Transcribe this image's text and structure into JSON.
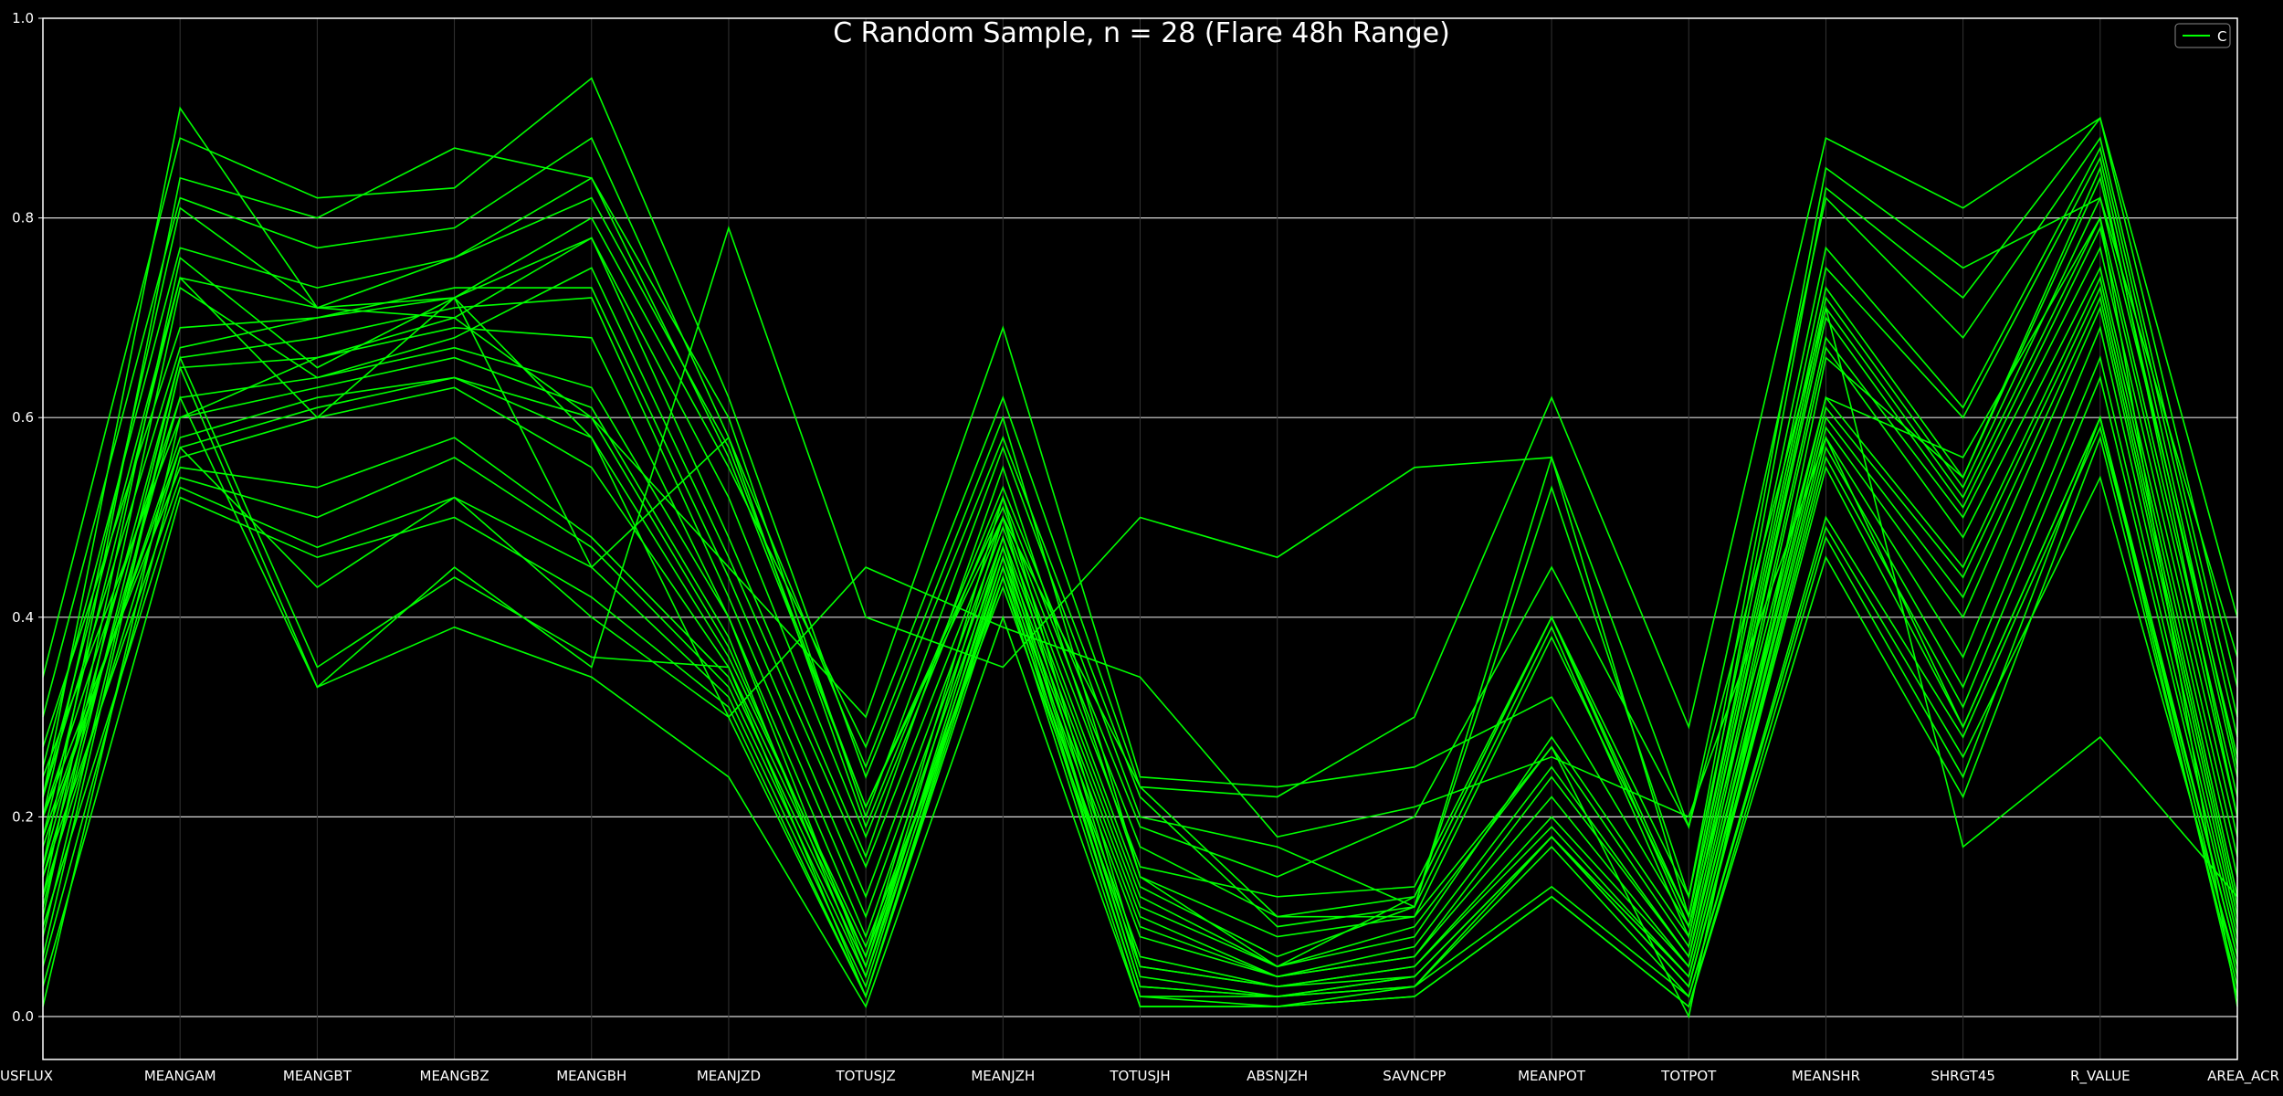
{
  "chart_data": {
    "type": "line",
    "title": "C Random Sample, n = 28 (Flare 48h Range)",
    "categories": [
      "USFLUX",
      "MEANGAM",
      "MEANGBT",
      "MEANGBZ",
      "MEANGBH",
      "MEANJZD",
      "TOTUSJZ",
      "MEANJZH",
      "TOTUSJH",
      "ABSNJZH",
      "SAVNCPP",
      "MEANPOT",
      "TOTPOT",
      "MEANSHR",
      "SHRGT45",
      "R_VALUE",
      "AREA_ACR"
    ],
    "ylim": [
      0.0,
      1.0
    ],
    "yticks": [
      "0.0",
      "0.2",
      "0.4",
      "0.6",
      "0.8",
      "1.0"
    ],
    "grid": "horizontal",
    "legend": {
      "position": "top-right",
      "entries": [
        "C"
      ]
    },
    "colors": {
      "series": "#00ff00",
      "background": "#000000",
      "grid": "#ffffff",
      "axis": "#ffffff"
    },
    "series": [
      {
        "name": "C",
        "values": [
          0.22,
          0.91,
          0.71,
          0.72,
          0.8,
          0.55,
          0.27,
          0.62,
          0.23,
          0.22,
          0.3,
          0.62,
          0.29,
          0.88,
          0.81,
          0.9,
          0.4
        ]
      },
      {
        "name": "C",
        "values": [
          0.34,
          0.88,
          0.82,
          0.83,
          0.94,
          0.62,
          0.24,
          0.58,
          0.22,
          0.09,
          0.11,
          0.53,
          0.12,
          0.85,
          0.75,
          0.82,
          0.36
        ]
      },
      {
        "name": "C",
        "values": [
          0.15,
          0.84,
          0.8,
          0.87,
          0.84,
          0.6,
          0.2,
          0.57,
          0.2,
          0.17,
          0.11,
          0.56,
          0.1,
          0.83,
          0.72,
          0.9,
          0.33
        ]
      },
      {
        "name": "C",
        "values": [
          0.3,
          0.82,
          0.77,
          0.79,
          0.88,
          0.58,
          0.19,
          0.53,
          0.19,
          0.14,
          0.2,
          0.45,
          0.19,
          0.82,
          0.68,
          0.88,
          0.3
        ]
      },
      {
        "name": "C",
        "values": [
          0.2,
          0.81,
          0.71,
          0.76,
          0.82,
          0.57,
          0.21,
          0.51,
          0.15,
          0.12,
          0.13,
          0.4,
          0.12,
          0.77,
          0.61,
          0.87,
          0.28
        ]
      },
      {
        "name": "C",
        "values": [
          0.25,
          0.77,
          0.73,
          0.76,
          0.84,
          0.56,
          0.21,
          0.5,
          0.23,
          0.1,
          0.12,
          0.4,
          0.1,
          0.75,
          0.6,
          0.86,
          0.25
        ]
      },
      {
        "name": "C",
        "values": [
          0.12,
          0.76,
          0.65,
          0.72,
          0.78,
          0.52,
          0.18,
          0.52,
          0.17,
          0.1,
          0.1,
          0.38,
          0.1,
          0.73,
          0.54,
          0.84,
          0.24
        ]
      },
      {
        "name": "C",
        "values": [
          0.18,
          0.74,
          0.71,
          0.7,
          0.78,
          0.48,
          0.16,
          0.55,
          0.14,
          0.05,
          0.12,
          0.4,
          0.09,
          0.72,
          0.53,
          0.82,
          0.26
        ]
      },
      {
        "name": "C",
        "values": [
          0.1,
          0.73,
          0.64,
          0.68,
          0.75,
          0.46,
          0.15,
          0.5,
          0.13,
          0.06,
          0.11,
          0.39,
          0.08,
          0.71,
          0.52,
          0.8,
          0.22
        ]
      },
      {
        "name": "C",
        "values": [
          0.22,
          0.67,
          0.7,
          0.73,
          0.73,
          0.44,
          0.12,
          0.49,
          0.12,
          0.05,
          0.08,
          0.28,
          0.08,
          0.7,
          0.51,
          0.79,
          0.2
        ]
      },
      {
        "name": "C",
        "values": [
          0.15,
          0.66,
          0.68,
          0.71,
          0.72,
          0.42,
          0.1,
          0.48,
          0.11,
          0.05,
          0.09,
          0.27,
          0.07,
          0.68,
          0.5,
          0.77,
          0.18
        ]
      },
      {
        "name": "C",
        "values": [
          0.08,
          0.65,
          0.66,
          0.69,
          0.68,
          0.4,
          0.08,
          0.47,
          0.1,
          0.04,
          0.07,
          0.25,
          0.06,
          0.67,
          0.48,
          0.75,
          0.16
        ]
      },
      {
        "name": "C",
        "values": [
          0.2,
          0.62,
          0.64,
          0.67,
          0.63,
          0.4,
          0.05,
          0.46,
          0.09,
          0.04,
          0.06,
          0.24,
          0.06,
          0.62,
          0.45,
          0.74,
          0.14
        ]
      },
      {
        "name": "C",
        "values": [
          0.24,
          0.6,
          0.63,
          0.66,
          0.61,
          0.38,
          0.04,
          0.45,
          0.08,
          0.04,
          0.06,
          0.22,
          0.05,
          0.61,
          0.44,
          0.73,
          0.12
        ]
      },
      {
        "name": "C",
        "values": [
          0.17,
          0.58,
          0.62,
          0.64,
          0.6,
          0.37,
          0.06,
          0.44,
          0.06,
          0.03,
          0.05,
          0.2,
          0.05,
          0.6,
          0.42,
          0.72,
          0.11
        ]
      },
      {
        "name": "C",
        "values": [
          0.12,
          0.57,
          0.61,
          0.64,
          0.58,
          0.36,
          0.07,
          0.43,
          0.05,
          0.03,
          0.05,
          0.19,
          0.04,
          0.59,
          0.4,
          0.71,
          0.1
        ]
      },
      {
        "name": "C",
        "values": [
          0.05,
          0.56,
          0.6,
          0.63,
          0.55,
          0.35,
          0.06,
          0.52,
          0.05,
          0.03,
          0.04,
          0.18,
          0.04,
          0.58,
          0.36,
          0.69,
          0.09
        ]
      },
      {
        "name": "C",
        "values": [
          0.2,
          0.55,
          0.53,
          0.58,
          0.48,
          0.34,
          0.05,
          0.5,
          0.04,
          0.02,
          0.04,
          0.18,
          0.03,
          0.57,
          0.33,
          0.66,
          0.08
        ]
      },
      {
        "name": "C",
        "values": [
          0.14,
          0.54,
          0.5,
          0.56,
          0.47,
          0.33,
          0.04,
          0.48,
          0.03,
          0.02,
          0.04,
          0.18,
          0.03,
          0.56,
          0.31,
          0.64,
          0.07
        ]
      },
      {
        "name": "C",
        "values": [
          0.09,
          0.53,
          0.47,
          0.52,
          0.45,
          0.32,
          0.03,
          0.47,
          0.03,
          0.02,
          0.03,
          0.18,
          0.03,
          0.55,
          0.29,
          0.6,
          0.06
        ]
      },
      {
        "name": "C",
        "values": [
          0.03,
          0.52,
          0.46,
          0.5,
          0.42,
          0.31,
          0.02,
          0.46,
          0.02,
          0.02,
          0.03,
          0.17,
          0.02,
          0.5,
          0.28,
          0.59,
          0.06
        ]
      },
      {
        "name": "C",
        "values": [
          0.18,
          0.57,
          0.43,
          0.52,
          0.4,
          0.3,
          0.02,
          0.45,
          0.02,
          0.01,
          0.03,
          0.13,
          0.02,
          0.49,
          0.26,
          0.54,
          0.05
        ]
      },
      {
        "name": "C",
        "values": [
          0.11,
          0.66,
          0.35,
          0.44,
          0.36,
          0.35,
          0.02,
          0.44,
          0.01,
          0.01,
          0.02,
          0.12,
          0.01,
          0.48,
          0.24,
          0.6,
          0.04
        ]
      },
      {
        "name": "C",
        "values": [
          0.06,
          0.65,
          0.33,
          0.39,
          0.34,
          0.24,
          0.01,
          0.4,
          0.01,
          0.01,
          0.02,
          0.12,
          0.01,
          0.46,
          0.22,
          0.58,
          0.03
        ]
      },
      {
        "name": "C",
        "values": [
          0.14,
          0.62,
          0.33,
          0.45,
          0.35,
          0.79,
          0.4,
          0.35,
          0.5,
          0.46,
          0.55,
          0.56,
          0.19,
          0.71,
          0.17,
          0.28,
          0.12
        ]
      },
      {
        "name": "C",
        "values": [
          0.22,
          0.74,
          0.6,
          0.72,
          0.58,
          0.3,
          0.45,
          0.39,
          0.34,
          0.18,
          0.21,
          0.26,
          0.2,
          0.58,
          0.29,
          0.6,
          0.02
        ]
      },
      {
        "name": "C",
        "values": [
          0.01,
          0.6,
          0.66,
          0.7,
          0.6,
          0.45,
          0.3,
          0.69,
          0.24,
          0.23,
          0.25,
          0.32,
          0.09,
          0.62,
          0.56,
          0.8,
          0.01
        ]
      },
      {
        "name": "C",
        "values": [
          0.27,
          0.69,
          0.7,
          0.72,
          0.45,
          0.58,
          0.25,
          0.6,
          0.14,
          0.08,
          0.1,
          0.27,
          0.0,
          0.66,
          0.54,
          0.85,
          0.2
        ]
      }
    ]
  }
}
